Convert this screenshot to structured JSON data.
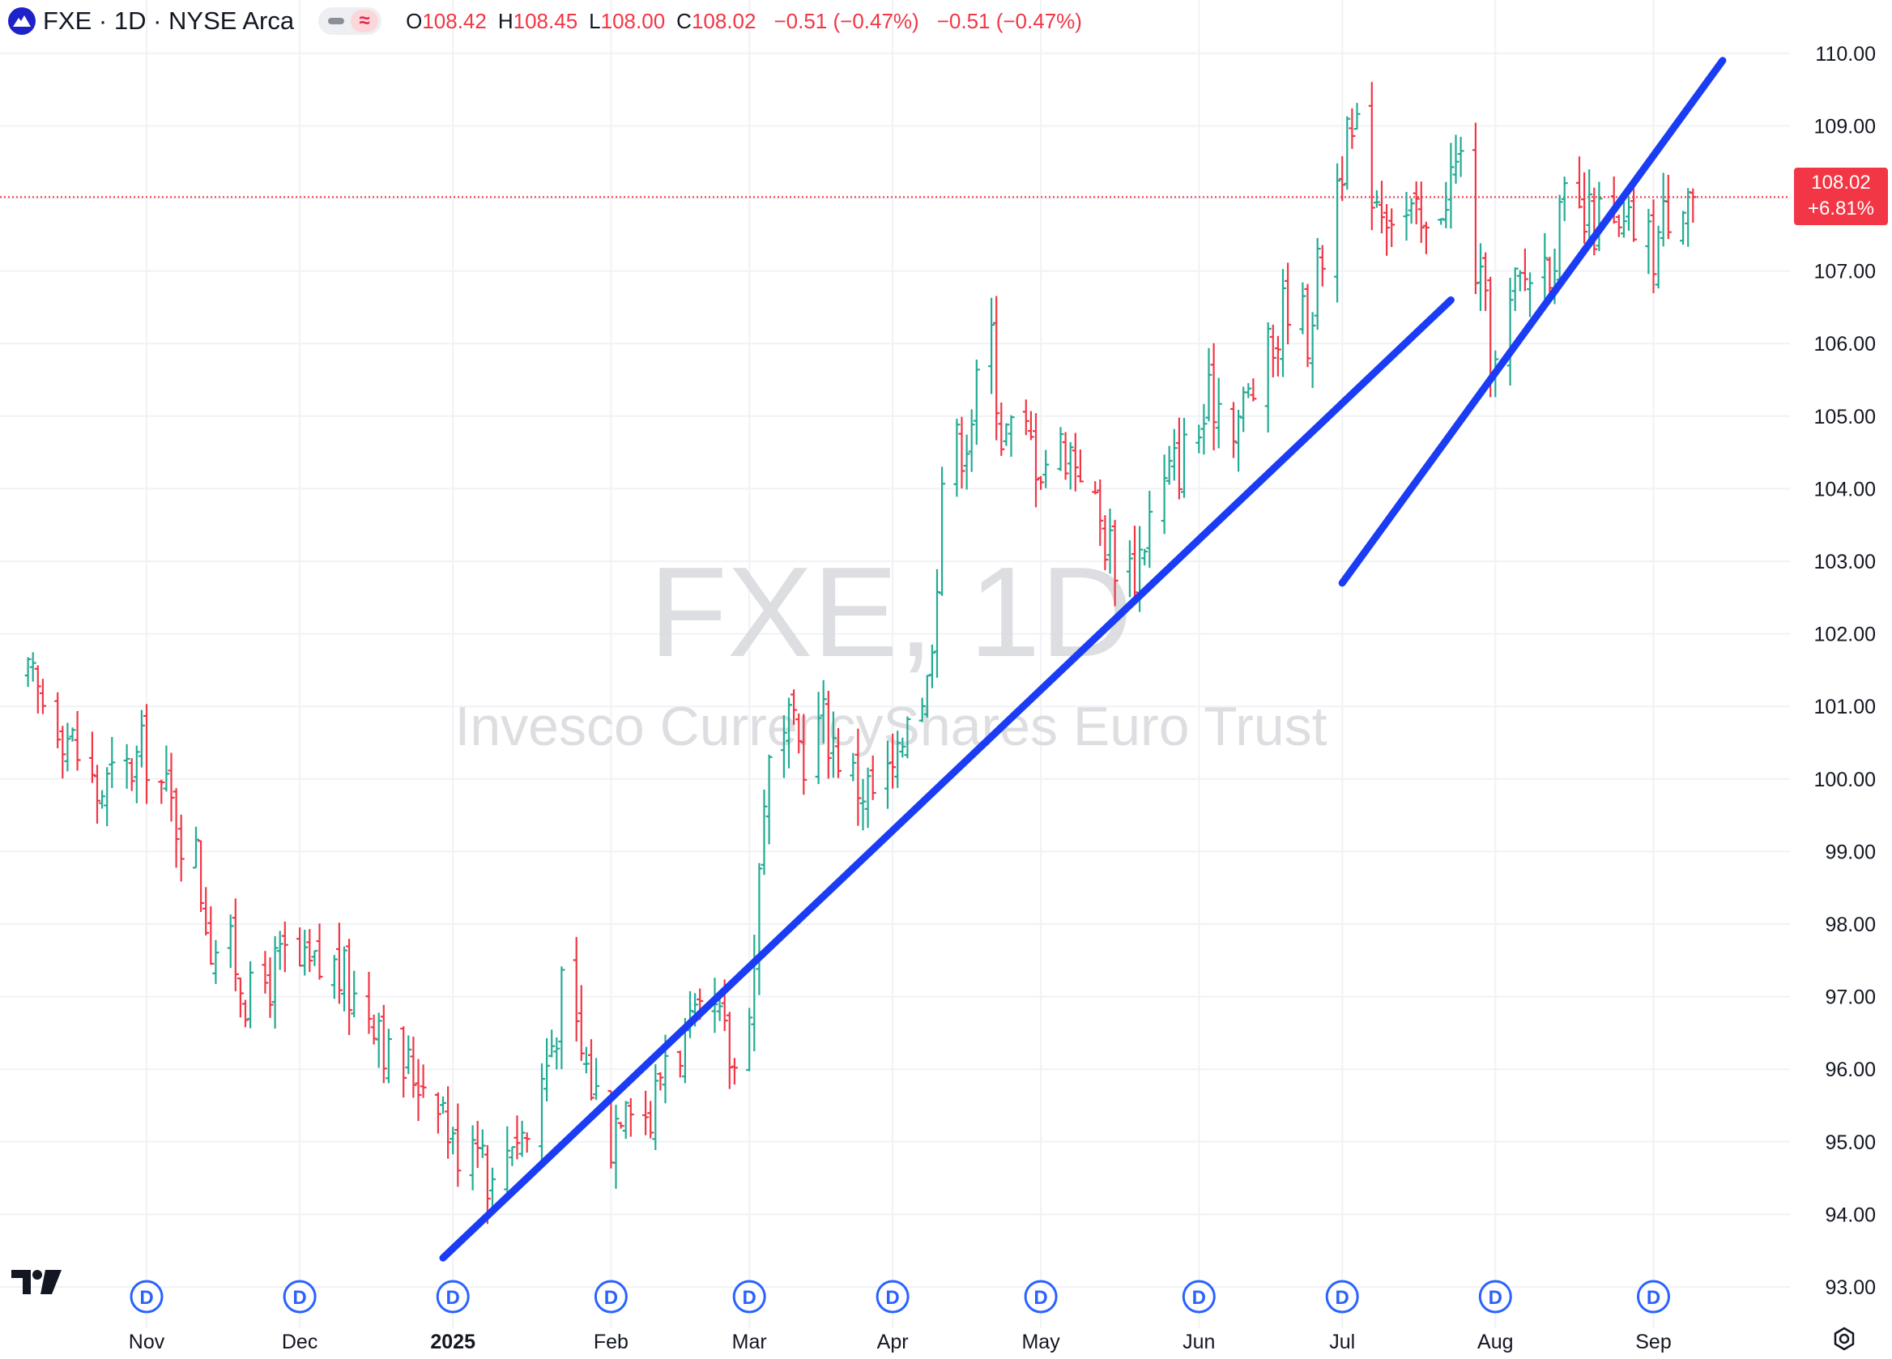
{
  "header": {
    "symbol_line": "FXE · 1D · NYSE Arca",
    "icon": "fxe-logo-icon",
    "ohlc": [
      {
        "key": "O",
        "value": "108.42"
      },
      {
        "key": "H",
        "value": "108.45"
      },
      {
        "key": "L",
        "value": "108.00"
      },
      {
        "key": "C",
        "value": "108.02"
      }
    ],
    "change": "−0.51 (−0.47%)",
    "change2": "−0.51 (−0.47%)"
  },
  "watermark": {
    "ticker": "FXE, 1D",
    "name": "Invesco CurrencyShares Euro Trust"
  },
  "price_label": {
    "price": "108.02",
    "change_pct": "+6.81%"
  },
  "colors": {
    "up": "#22ab94",
    "down": "#f23645",
    "trendline": "#1a3cf5",
    "grid": "#f0f2f5",
    "event_badge": "#2962ff"
  },
  "chart_data": {
    "type": "ohlc",
    "y_axis": {
      "min": 93.0,
      "max": 110.0,
      "ticks": [
        "110.00",
        "109.00",
        "108.00",
        "107.00",
        "106.00",
        "105.00",
        "104.00",
        "103.00",
        "102.00",
        "101.00",
        "100.00",
        "99.00",
        "98.00",
        "97.00",
        "96.00",
        "95.00",
        "94.00",
        "93.00"
      ],
      "position": "right"
    },
    "x_axis": {
      "ticks": [
        {
          "label": "Nov",
          "date": "2024-11-01"
        },
        {
          "label": "Dec",
          "date": "2024-12-02"
        },
        {
          "label": "2025",
          "date": "2025-01-02",
          "bold": true
        },
        {
          "label": "Feb",
          "date": "2025-02-03"
        },
        {
          "label": "Mar",
          "date": "2025-03-03"
        },
        {
          "label": "Apr",
          "date": "2025-04-01"
        },
        {
          "label": "May",
          "date": "2025-05-01"
        },
        {
          "label": "Jun",
          "date": "2025-06-02"
        },
        {
          "label": "Jul",
          "date": "2025-07-01"
        },
        {
          "label": "Aug",
          "date": "2025-08-01"
        },
        {
          "label": "Sep",
          "date": "2025-09-02"
        }
      ]
    },
    "dividend_markers": [
      {
        "date": "2024-11-01",
        "label": "D"
      },
      {
        "date": "2024-12-02",
        "label": "D"
      },
      {
        "date": "2025-01-02",
        "label": "D"
      },
      {
        "date": "2025-02-03",
        "label": "D"
      },
      {
        "date": "2025-03-03",
        "label": "D"
      },
      {
        "date": "2025-04-01",
        "label": "D"
      },
      {
        "date": "2025-05-01",
        "label": "D"
      },
      {
        "date": "2025-06-02",
        "label": "D"
      },
      {
        "date": "2025-07-01",
        "label": "D"
      },
      {
        "date": "2025-08-01",
        "label": "D"
      },
      {
        "date": "2025-09-02",
        "label": "D"
      }
    ],
    "last_price": 108.02,
    "grid": true,
    "trendlines": [
      {
        "start": {
          "date": "2024-12-31",
          "price": 93.4
        },
        "end": {
          "date": "2025-07-23",
          "price": 106.6
        }
      },
      {
        "start": {
          "date": "2025-07-01",
          "price": 102.7
        },
        "end": {
          "date": "2025-09-16",
          "price": 109.9
        }
      }
    ],
    "keypoints": [
      {
        "date": "2024-10-08",
        "price": 101.3
      },
      {
        "date": "2024-10-14",
        "price": 100.9
      },
      {
        "date": "2024-10-22",
        "price": 99.8
      },
      {
        "date": "2024-10-28",
        "price": 100.1
      },
      {
        "date": "2024-11-01",
        "price": 100.4
      },
      {
        "date": "2024-11-06",
        "price": 99.6
      },
      {
        "date": "2024-11-11",
        "price": 98.9
      },
      {
        "date": "2024-11-14",
        "price": 97.8
      },
      {
        "date": "2024-11-19",
        "price": 97.5
      },
      {
        "date": "2024-11-22",
        "price": 96.9
      },
      {
        "date": "2024-11-25",
        "price": 97.2
      },
      {
        "date": "2024-11-29",
        "price": 97.5
      },
      {
        "date": "2024-12-03",
        "price": 97.3
      },
      {
        "date": "2024-12-09",
        "price": 97.4
      },
      {
        "date": "2024-12-13",
        "price": 97.0
      },
      {
        "date": "2024-12-18",
        "price": 96.8
      },
      {
        "date": "2024-12-20",
        "price": 96.1
      },
      {
        "date": "2024-12-24",
        "price": 96.0
      },
      {
        "date": "2024-12-30",
        "price": 95.8
      },
      {
        "date": "2025-01-02",
        "price": 94.9
      },
      {
        "date": "2025-01-07",
        "price": 95.3
      },
      {
        "date": "2025-01-10",
        "price": 94.3
      },
      {
        "date": "2025-01-14",
        "price": 95.2
      },
      {
        "date": "2025-01-17",
        "price": 95.1
      },
      {
        "date": "2025-01-21",
        "price": 96.1
      },
      {
        "date": "2025-01-24",
        "price": 97.0
      },
      {
        "date": "2025-01-28",
        "price": 96.2
      },
      {
        "date": "2025-02-03",
        "price": 95.1
      },
      {
        "date": "2025-02-06",
        "price": 95.9
      },
      {
        "date": "2025-02-11",
        "price": 95.3
      },
      {
        "date": "2025-02-14",
        "price": 96.3
      },
      {
        "date": "2025-02-19",
        "price": 96.4
      },
      {
        "date": "2025-02-24",
        "price": 96.7
      },
      {
        "date": "2025-02-28",
        "price": 96.0
      },
      {
        "date": "2025-03-04",
        "price": 97.5
      },
      {
        "date": "2025-03-06",
        "price": 99.9
      },
      {
        "date": "2025-03-11",
        "price": 100.6
      },
      {
        "date": "2025-03-14",
        "price": 100.4
      },
      {
        "date": "2025-03-18",
        "price": 100.8
      },
      {
        "date": "2025-03-24",
        "price": 100.0
      },
      {
        "date": "2025-03-28",
        "price": 99.8
      },
      {
        "date": "2025-04-02",
        "price": 100.1
      },
      {
        "date": "2025-04-04",
        "price": 101.1
      },
      {
        "date": "2025-04-08",
        "price": 101.3
      },
      {
        "date": "2025-04-10",
        "price": 103.0
      },
      {
        "date": "2025-04-11",
        "price": 104.2
      },
      {
        "date": "2025-04-16",
        "price": 104.8
      },
      {
        "date": "2025-04-21",
        "price": 106.1
      },
      {
        "date": "2025-04-23",
        "price": 104.8
      },
      {
        "date": "2025-04-28",
        "price": 104.7
      },
      {
        "date": "2025-05-01",
        "price": 104.4
      },
      {
        "date": "2025-05-06",
        "price": 104.6
      },
      {
        "date": "2025-05-09",
        "price": 104.4
      },
      {
        "date": "2025-05-12",
        "price": 103.7
      },
      {
        "date": "2025-05-15",
        "price": 103.2
      },
      {
        "date": "2025-05-20",
        "price": 102.9
      },
      {
        "date": "2025-05-23",
        "price": 103.6
      },
      {
        "date": "2025-05-28",
        "price": 104.3
      },
      {
        "date": "2025-06-02",
        "price": 104.8
      },
      {
        "date": "2025-06-05",
        "price": 105.3
      },
      {
        "date": "2025-06-10",
        "price": 105.0
      },
      {
        "date": "2025-06-13",
        "price": 105.4
      },
      {
        "date": "2025-06-17",
        "price": 105.9
      },
      {
        "date": "2025-06-20",
        "price": 106.7
      },
      {
        "date": "2025-06-24",
        "price": 106.2
      },
      {
        "date": "2025-06-27",
        "price": 107.3
      },
      {
        "date": "2025-07-01",
        "price": 108.6
      },
      {
        "date": "2025-07-04",
        "price": 108.8
      },
      {
        "date": "2025-07-08",
        "price": 108.1
      },
      {
        "date": "2025-07-11",
        "price": 107.9
      },
      {
        "date": "2025-07-15",
        "price": 107.7
      },
      {
        "date": "2025-07-18",
        "price": 107.4
      },
      {
        "date": "2025-07-22",
        "price": 108.2
      },
      {
        "date": "2025-07-25",
        "price": 108.5
      },
      {
        "date": "2025-07-28",
        "price": 107.1
      },
      {
        "date": "2025-07-30",
        "price": 106.3
      },
      {
        "date": "2025-08-01",
        "price": 105.6
      },
      {
        "date": "2025-08-05",
        "price": 106.7
      },
      {
        "date": "2025-08-08",
        "price": 107.0
      },
      {
        "date": "2025-08-12",
        "price": 107.2
      },
      {
        "date": "2025-08-15",
        "price": 107.8
      },
      {
        "date": "2025-08-19",
        "price": 107.6
      },
      {
        "date": "2025-08-22",
        "price": 107.7
      },
      {
        "date": "2025-08-26",
        "price": 107.4
      },
      {
        "date": "2025-08-29",
        "price": 107.6
      },
      {
        "date": "2025-09-02",
        "price": 107.3
      },
      {
        "date": "2025-09-05",
        "price": 107.9
      },
      {
        "date": "2025-09-09",
        "price": 108.3
      },
      {
        "date": "2025-09-10",
        "price": 108.02
      }
    ]
  }
}
